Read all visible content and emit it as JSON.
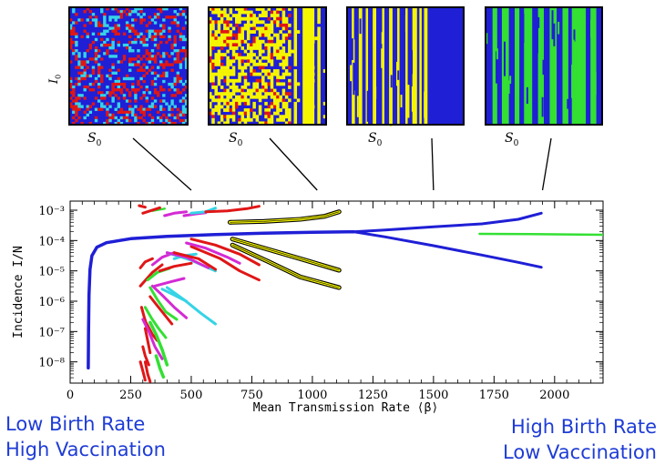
{
  "panels": {
    "ylabel": "I",
    "ylabel_sub": "0",
    "xlabel": "S",
    "xlabel_sub": "0",
    "palettes": [
      [
        "#1f1fd6",
        "#e01616",
        "#35d4e6"
      ],
      [
        "#1f1fd6",
        "#f5f500",
        "#e01616"
      ],
      [
        "#1f1fd6",
        "#f5f500"
      ],
      [
        "#1f1fd6",
        "#33e033"
      ]
    ],
    "pointer_targets_beta": [
      500,
      1020,
      1500,
      1950
    ]
  },
  "captions": {
    "left_line1": "Low Birth Rate",
    "left_line2": "High Vaccination",
    "right_line1": "High Birth Rate",
    "right_line2": "Low Vaccination"
  },
  "chart_data": {
    "type": "line",
    "xlabel": "Mean Transmission Rate  ⟨β⟩",
    "ylabel": "Incidence  I/N",
    "xlim": [
      0,
      2200
    ],
    "ylim_log10": [
      -8.7,
      -2.7
    ],
    "y_scale": "log",
    "x_ticks": [
      0,
      250,
      500,
      750,
      1000,
      1250,
      1500,
      1750,
      2000
    ],
    "x_tick_labels": [
      "0",
      "250",
      "500",
      "750",
      "1000",
      "1250",
      "1500",
      "1750",
      "2000"
    ],
    "y_ticks_log10": [
      -3,
      -4,
      -5,
      -6,
      -7,
      -8
    ],
    "y_tick_labels": [
      "10⁻³",
      "10⁻⁴",
      "10⁻⁵",
      "10⁻⁶",
      "10⁻⁷",
      "10⁻⁸"
    ],
    "series": [
      {
        "color": "#1f1fd6",
        "width": 3.5,
        "points": [
          [
            75,
            -8.2
          ],
          [
            76,
            -7.0
          ],
          [
            78,
            -5.8
          ],
          [
            82,
            -4.95
          ],
          [
            90,
            -4.5
          ],
          [
            110,
            -4.22
          ],
          [
            150,
            -4.07
          ],
          [
            250,
            -3.94
          ],
          [
            400,
            -3.86
          ],
          [
            600,
            -3.8
          ],
          [
            800,
            -3.76
          ],
          [
            1000,
            -3.73
          ],
          [
            1170,
            -3.71
          ]
        ]
      },
      {
        "color": "#1f1fd6",
        "width": 3,
        "points": [
          [
            1170,
            -3.71
          ],
          [
            1300,
            -3.65
          ],
          [
            1500,
            -3.55
          ],
          [
            1700,
            -3.45
          ],
          [
            1850,
            -3.3
          ],
          [
            1945,
            -3.1
          ]
        ]
      },
      {
        "color": "#1f1fd6",
        "width": 3,
        "points": [
          [
            1170,
            -3.71
          ],
          [
            1300,
            -3.88
          ],
          [
            1500,
            -4.17
          ],
          [
            1700,
            -4.48
          ],
          [
            1850,
            -4.72
          ],
          [
            1945,
            -4.88
          ]
        ]
      },
      {
        "color": "#33e033",
        "width": 2.5,
        "points": [
          [
            1690,
            -3.78
          ],
          [
            1900,
            -3.79
          ],
          [
            2200,
            -3.81
          ]
        ]
      },
      {
        "color": "#e01616",
        "width": 3,
        "points": [
          [
            285,
            -2.85
          ],
          [
            310,
            -2.9
          ]
        ]
      },
      {
        "color": "#33e033",
        "width": 2.5,
        "points": [
          [
            340,
            -3.02
          ],
          [
            390,
            -2.95
          ]
        ]
      },
      {
        "color": "#e01616",
        "width": 3,
        "points": [
          [
            300,
            -3.1
          ],
          [
            370,
            -2.92
          ]
        ]
      },
      {
        "color": "#d42ad4",
        "width": 3,
        "points": [
          [
            390,
            -3.18
          ],
          [
            430,
            -3.1
          ],
          [
            480,
            -3.05
          ]
        ]
      },
      {
        "color": "#d42ad4",
        "width": 3,
        "points": [
          [
            470,
            -3.18
          ],
          [
            520,
            -3.12
          ],
          [
            560,
            -3.08
          ]
        ]
      },
      {
        "color": "#35d4e6",
        "width": 3,
        "points": [
          [
            500,
            -3.1
          ],
          [
            560,
            -3.05
          ],
          [
            600,
            -2.93
          ]
        ]
      },
      {
        "color": "#e01616",
        "width": 3,
        "points": [
          [
            560,
            -3.05
          ],
          [
            650,
            -3.02
          ],
          [
            730,
            -2.95
          ],
          [
            780,
            -2.87
          ]
        ]
      },
      {
        "color": "#f5f500",
        "width": 3.5,
        "outline": true,
        "points": [
          [
            660,
            -3.4
          ],
          [
            800,
            -3.37
          ],
          [
            950,
            -3.3
          ],
          [
            1050,
            -3.2
          ],
          [
            1110,
            -3.05
          ]
        ]
      },
      {
        "color": "#e01616",
        "width": 3,
        "points": [
          [
            290,
            -4.9
          ],
          [
            310,
            -4.7
          ],
          [
            340,
            -4.6
          ]
        ]
      },
      {
        "color": "#e01616",
        "width": 3,
        "points": [
          [
            290,
            -5.5
          ],
          [
            340,
            -5.05
          ],
          [
            380,
            -4.8
          ]
        ]
      },
      {
        "color": "#33e033",
        "width": 3,
        "points": [
          [
            320,
            -5.3
          ],
          [
            360,
            -5.05
          ],
          [
            410,
            -4.92
          ]
        ]
      },
      {
        "color": "#d42ad4",
        "width": 3,
        "points": [
          [
            340,
            -4.8
          ],
          [
            380,
            -4.55
          ],
          [
            430,
            -4.4
          ]
        ]
      },
      {
        "color": "#d42ad4",
        "width": 3,
        "points": [
          [
            350,
            -5.5
          ],
          [
            420,
            -5.35
          ],
          [
            470,
            -5.25
          ]
        ]
      },
      {
        "color": "#e01616",
        "width": 3,
        "points": [
          [
            370,
            -5.0
          ],
          [
            430,
            -4.85
          ],
          [
            500,
            -4.75
          ]
        ]
      },
      {
        "color": "#35d4e6",
        "width": 3,
        "points": [
          [
            430,
            -4.6
          ],
          [
            470,
            -4.5
          ],
          [
            520,
            -4.45
          ]
        ]
      },
      {
        "color": "#35d4e6",
        "width": 3,
        "points": [
          [
            400,
            -4.4
          ],
          [
            500,
            -4.65
          ],
          [
            600,
            -5.0
          ]
        ]
      },
      {
        "color": "#d42ad4",
        "width": 3,
        "points": [
          [
            400,
            -4.4
          ],
          [
            480,
            -4.55
          ],
          [
            570,
            -4.9
          ]
        ]
      },
      {
        "color": "#e01616",
        "width": 3,
        "points": [
          [
            430,
            -4.4
          ],
          [
            530,
            -4.6
          ],
          [
            600,
            -4.95
          ]
        ]
      },
      {
        "color": "#e01616",
        "width": 3,
        "points": [
          [
            500,
            -4.2
          ],
          [
            620,
            -4.6
          ],
          [
            700,
            -5.0
          ],
          [
            780,
            -5.3
          ]
        ]
      },
      {
        "color": "#d42ad4",
        "width": 3,
        "points": [
          [
            480,
            -4.08
          ],
          [
            560,
            -4.25
          ],
          [
            650,
            -4.55
          ],
          [
            700,
            -4.75
          ]
        ]
      },
      {
        "color": "#e01616",
        "width": 3,
        "points": [
          [
            500,
            -3.95
          ],
          [
            600,
            -4.15
          ],
          [
            700,
            -4.45
          ],
          [
            780,
            -4.8
          ]
        ]
      },
      {
        "color": "#f5f500",
        "width": 3.5,
        "outline": true,
        "points": [
          [
            670,
            -3.95
          ],
          [
            800,
            -4.25
          ],
          [
            950,
            -4.6
          ],
          [
            1110,
            -4.98
          ]
        ]
      },
      {
        "color": "#f5f500",
        "width": 3.5,
        "outline": true,
        "points": [
          [
            670,
            -4.15
          ],
          [
            820,
            -4.7
          ],
          [
            950,
            -5.2
          ],
          [
            1110,
            -5.55
          ]
        ]
      },
      {
        "color": "#35d4e6",
        "width": 3,
        "points": [
          [
            380,
            -5.6
          ],
          [
            430,
            -5.8
          ],
          [
            480,
            -6.0
          ]
        ]
      },
      {
        "color": "#35d4e6",
        "width": 3,
        "points": [
          [
            400,
            -5.55
          ],
          [
            470,
            -5.95
          ],
          [
            540,
            -6.4
          ],
          [
            600,
            -6.75
          ]
        ]
      },
      {
        "color": "#d42ad4",
        "width": 3,
        "points": [
          [
            340,
            -5.5
          ],
          [
            380,
            -5.8
          ],
          [
            430,
            -6.2
          ],
          [
            480,
            -6.55
          ]
        ]
      },
      {
        "color": "#e01616",
        "width": 3,
        "points": [
          [
            330,
            -5.85
          ],
          [
            360,
            -6.15
          ],
          [
            390,
            -6.45
          ],
          [
            420,
            -6.75
          ]
        ]
      },
      {
        "color": "#33e033",
        "width": 3,
        "points": [
          [
            330,
            -5.55
          ],
          [
            360,
            -5.95
          ],
          [
            395,
            -6.35
          ],
          [
            440,
            -6.6
          ]
        ]
      },
      {
        "color": "#33e033",
        "width": 3,
        "points": [
          [
            310,
            -6.2
          ],
          [
            335,
            -6.55
          ],
          [
            365,
            -6.9
          ],
          [
            395,
            -7.2
          ]
        ]
      },
      {
        "color": "#e01616",
        "width": 3,
        "points": [
          [
            305,
            -6.6
          ],
          [
            320,
            -6.8
          ],
          [
            340,
            -7.1
          ],
          [
            360,
            -7.3
          ]
        ]
      },
      {
        "color": "#e01616",
        "width": 3,
        "points": [
          [
            295,
            -6.2
          ],
          [
            305,
            -6.5
          ],
          [
            320,
            -6.9
          ]
        ]
      },
      {
        "color": "#d42ad4",
        "width": 3,
        "points": [
          [
            300,
            -6.6
          ],
          [
            325,
            -7.0
          ],
          [
            350,
            -7.5
          ],
          [
            380,
            -7.9
          ]
        ]
      },
      {
        "color": "#33e033",
        "width": 3.5,
        "points": [
          [
            330,
            -6.7
          ],
          [
            355,
            -7.1
          ],
          [
            380,
            -7.6
          ],
          [
            400,
            -8.1
          ]
        ]
      },
      {
        "color": "#e01616",
        "width": 3,
        "points": [
          [
            310,
            -6.9
          ],
          [
            320,
            -7.3
          ],
          [
            330,
            -7.7
          ]
        ]
      },
      {
        "color": "#33e033",
        "width": 3.5,
        "points": [
          [
            355,
            -7.8
          ],
          [
            370,
            -8.2
          ],
          [
            385,
            -8.5
          ]
        ]
      },
      {
        "color": "#e01616",
        "width": 3,
        "points": [
          [
            300,
            -7.5
          ],
          [
            310,
            -7.8
          ],
          [
            325,
            -8.1
          ]
        ]
      },
      {
        "color": "#e01616",
        "width": 3,
        "points": [
          [
            290,
            -8.0
          ],
          [
            300,
            -8.3
          ],
          [
            310,
            -8.6
          ]
        ]
      },
      {
        "color": "#e01616",
        "width": 3,
        "points": [
          [
            310,
            -8.0
          ],
          [
            320,
            -8.4
          ],
          [
            330,
            -8.65
          ]
        ]
      }
    ]
  }
}
